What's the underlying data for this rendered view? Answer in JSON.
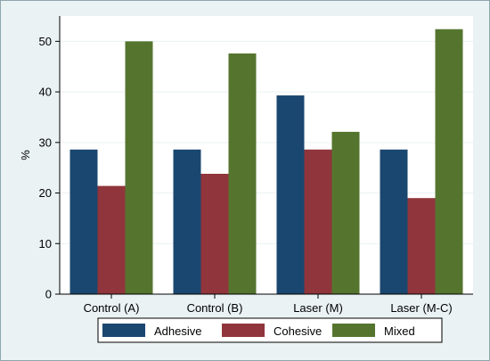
{
  "chart_data": {
    "type": "bar",
    "categories": [
      "Control (A)",
      "Control (B)",
      "Laser (M)",
      "Laser (M-C)"
    ],
    "series": [
      {
        "name": "Adhesive",
        "color": "#1a476f",
        "values": [
          28.6,
          28.6,
          39.3,
          28.6
        ]
      },
      {
        "name": "Cohesive",
        "color": "#90353b",
        "values": [
          21.4,
          23.8,
          28.6,
          19.0
        ]
      },
      {
        "name": "Mixed",
        "color": "#55752f",
        "values": [
          50.0,
          47.6,
          32.1,
          52.4
        ]
      }
    ],
    "title": "",
    "xlabel": "",
    "ylabel": "%",
    "ylim": [
      0,
      55
    ],
    "yticks": [
      0,
      10,
      20,
      30,
      40,
      50
    ],
    "grid": true,
    "legend_position": "bottom",
    "colors": {
      "background": "#eaf2f3",
      "plot_area": "#ffffff",
      "grid": "#eaf2f3",
      "axis": "#000000"
    }
  }
}
